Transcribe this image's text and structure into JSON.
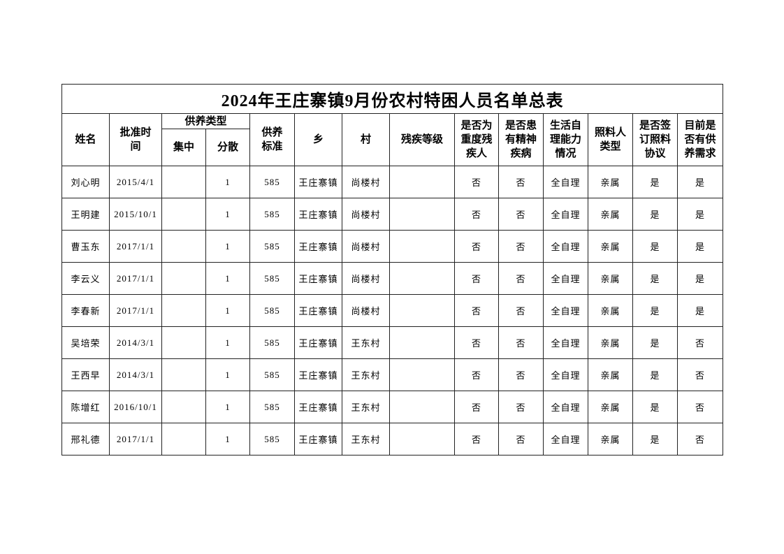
{
  "title": "2024年王庄寨镇9月份农村特困人员名单总表",
  "headers": {
    "name": "姓名",
    "approved": "批准时间",
    "support_type": "供养类型",
    "centralized": "集中",
    "dispersed": "分散",
    "standard": "供养标准",
    "township": "乡",
    "village": "村",
    "disability": "残疾等级",
    "severe": "是否为重度残疾人",
    "mental": "是否患有精神疾病",
    "selfcare": "生活自理能力情况",
    "caretaker": "照料人类型",
    "agreement": "是否签订照料协议",
    "need": "目前是否有供养需求"
  },
  "rows": [
    [
      "刘心明",
      "2015/4/1",
      "",
      "1",
      "585",
      "王庄寨镇",
      "尚楼村",
      "",
      "否",
      "否",
      "全自理",
      "亲属",
      "是",
      "是"
    ],
    [
      "王明建",
      "2015/10/1",
      "",
      "1",
      "585",
      "王庄寨镇",
      "尚楼村",
      "",
      "否",
      "否",
      "全自理",
      "亲属",
      "是",
      "是"
    ],
    [
      "曹玉东",
      "2017/1/1",
      "",
      "1",
      "585",
      "王庄寨镇",
      "尚楼村",
      "",
      "否",
      "否",
      "全自理",
      "亲属",
      "是",
      "是"
    ],
    [
      "李云义",
      "2017/1/1",
      "",
      "1",
      "585",
      "王庄寨镇",
      "尚楼村",
      "",
      "否",
      "否",
      "全自理",
      "亲属",
      "是",
      "是"
    ],
    [
      "李春新",
      "2017/1/1",
      "",
      "1",
      "585",
      "王庄寨镇",
      "尚楼村",
      "",
      "否",
      "否",
      "全自理",
      "亲属",
      "是",
      "是"
    ],
    [
      "吴培荣",
      "2014/3/1",
      "",
      "1",
      "585",
      "王庄寨镇",
      "王东村",
      "",
      "否",
      "否",
      "全自理",
      "亲属",
      "是",
      "否"
    ],
    [
      "王西早",
      "2014/3/1",
      "",
      "1",
      "585",
      "王庄寨镇",
      "王东村",
      "",
      "否",
      "否",
      "全自理",
      "亲属",
      "是",
      "否"
    ],
    [
      "陈增红",
      "2016/10/1",
      "",
      "1",
      "585",
      "王庄寨镇",
      "王东村",
      "",
      "否",
      "否",
      "全自理",
      "亲属",
      "是",
      "否"
    ],
    [
      "邢礼德",
      "2017/1/1",
      "",
      "1",
      "585",
      "王庄寨镇",
      "王东村",
      "",
      "否",
      "否",
      "全自理",
      "亲属",
      "是",
      "否"
    ]
  ]
}
